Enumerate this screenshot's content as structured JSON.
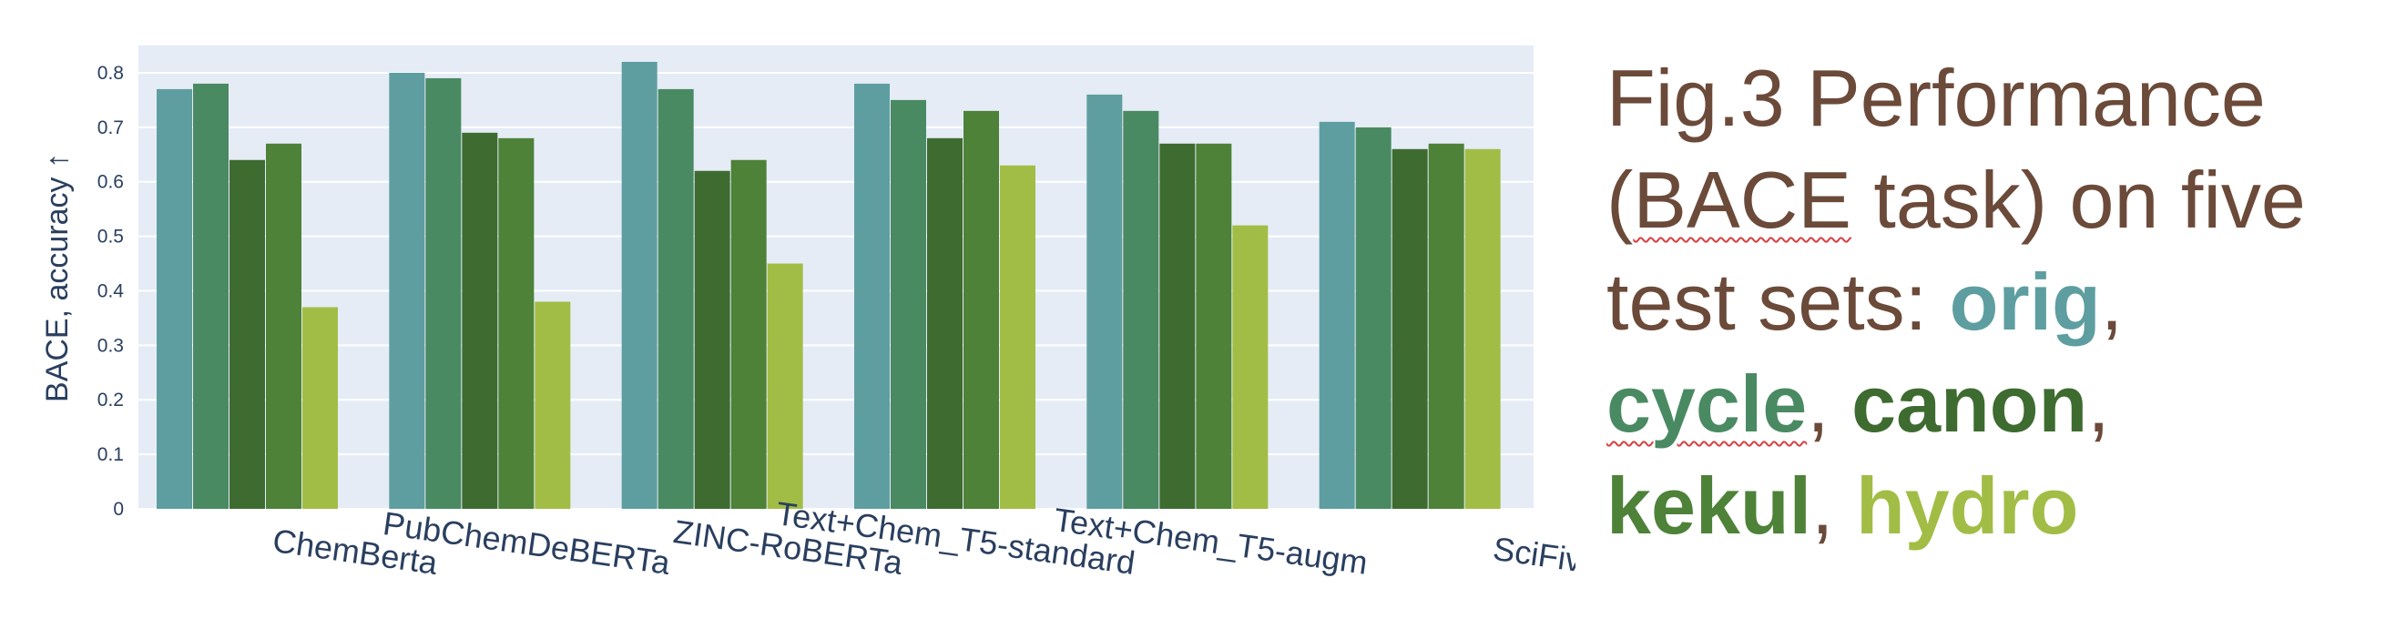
{
  "chart_data": {
    "type": "bar",
    "title": "",
    "xlabel": "",
    "ylabel": "BACE, accuracy ↑",
    "ylim": [
      0,
      0.85
    ],
    "yticks": [
      0,
      0.1,
      0.2,
      0.3,
      0.4,
      0.5,
      0.6,
      0.7,
      0.8
    ],
    "ytick_labels": [
      "0",
      "0.1",
      "0.2",
      "0.3",
      "0.4",
      "0.5",
      "0.6",
      "0.7",
      "0.8"
    ],
    "grid": true,
    "categories": [
      "ChemBerta",
      "PubChemDeBERTa",
      "ZINC-RoBERTa",
      "Text+Chem_T5-standard",
      "Text+Chem_T5-augm",
      "SciFive"
    ],
    "series": [
      {
        "name": "orig",
        "color": "#5e9ea0",
        "values": [
          0.77,
          0.8,
          0.82,
          0.78,
          0.76,
          0.71
        ]
      },
      {
        "name": "cycle",
        "color": "#4a8a63",
        "values": [
          0.78,
          0.79,
          0.77,
          0.75,
          0.73,
          0.7
        ]
      },
      {
        "name": "canon",
        "color": "#3e6b30",
        "values": [
          0.64,
          0.69,
          0.62,
          0.68,
          0.67,
          0.66
        ]
      },
      {
        "name": "kekul",
        "color": "#4d8238",
        "values": [
          0.67,
          0.68,
          0.64,
          0.73,
          0.67,
          0.67
        ]
      },
      {
        "name": "hydro",
        "color": "#a2bd46",
        "values": [
          0.37,
          0.38,
          0.45,
          0.63,
          0.52,
          0.66
        ]
      }
    ]
  },
  "caption": {
    "lines": [
      [
        {
          "text": "Fig.3 Performance"
        }
      ],
      [
        {
          "text": "("
        },
        {
          "text": "BACE",
          "squiggle": true
        },
        {
          "text": " task) on five"
        }
      ],
      [
        {
          "text": "test sets: "
        },
        {
          "series": 0
        },
        {
          "text": ","
        }
      ],
      [
        {
          "series": 1,
          "squiggle": true
        },
        {
          "text": ", "
        },
        {
          "series": 2
        },
        {
          "text": ","
        }
      ],
      [
        {
          "series": 3
        },
        {
          "text": ", "
        },
        {
          "series": 4
        }
      ]
    ]
  }
}
